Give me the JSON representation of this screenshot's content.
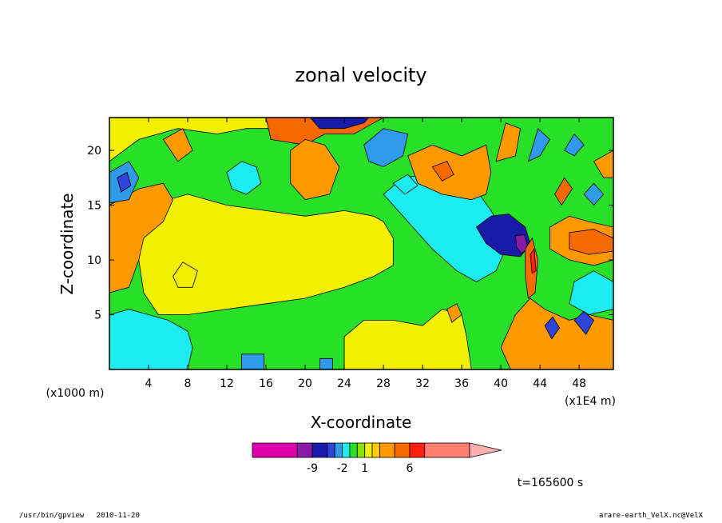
{
  "app": {
    "program": "/usr/bin/gpview",
    "date": "2010-11-20",
    "source": "arare-earth_VelX.nc@VelX",
    "time_label": "t=165600 s"
  },
  "colors": {
    "magenta": "#dd00aa",
    "purple": "#8a1aa8",
    "navy": "#1a1aa8",
    "blue": "#2f44d8",
    "sky": "#2f9be8",
    "cyan": "#1cecf0",
    "green": "#28e028",
    "lime": "#8ee000",
    "yellow": "#f0f000",
    "gold": "#ffcc00",
    "orange": "#ff9900",
    "darkorange": "#f56a00",
    "red": "#ff2010",
    "salmon": "#ff8070",
    "pink": "#ffb0b0"
  },
  "chart_data": {
    "type": "heatmap",
    "title": "zonal velocity",
    "xlabel": "X-coordinate",
    "ylabel": "Z-coordinate",
    "x_unit_label": "(x1000 m)",
    "x_scale_label": "(x1E4 m)",
    "xlim": [
      0,
      51.5
    ],
    "ylim": [
      0,
      23
    ],
    "x_ticks": [
      4,
      8,
      12,
      16,
      20,
      24,
      28,
      32,
      36,
      40,
      44,
      48
    ],
    "y_ticks": [
      5,
      10,
      15,
      20
    ],
    "colorbar": {
      "tick_labels": [
        "-9",
        "-2",
        "1",
        "6"
      ],
      "segments": [
        {
          "color": "magenta",
          "weight": 3
        },
        {
          "color": "purple",
          "weight": 1
        },
        {
          "color": "navy",
          "weight": 1
        },
        {
          "color": "blue",
          "weight": 0.5
        },
        {
          "color": "sky",
          "weight": 0.5
        },
        {
          "color": "cyan",
          "weight": 0.5
        },
        {
          "color": "green",
          "weight": 0.5
        },
        {
          "color": "lime",
          "weight": 0.5
        },
        {
          "color": "yellow",
          "weight": 0.5
        },
        {
          "color": "gold",
          "weight": 0.5
        },
        {
          "color": "orange",
          "weight": 1
        },
        {
          "color": "darkorange",
          "weight": 1
        },
        {
          "color": "red",
          "weight": 1
        },
        {
          "color": "salmon",
          "weight": 3
        }
      ],
      "extend": "pink"
    },
    "regions": [
      {
        "color": "green",
        "pts": [
          [
            0,
            0
          ],
          [
            51.5,
            0
          ],
          [
            51.5,
            23
          ],
          [
            0,
            23
          ]
        ]
      },
      {
        "color": "yellow",
        "pts": [
          [
            4,
            15
          ],
          [
            8,
            16
          ],
          [
            12,
            15
          ],
          [
            16,
            14.5
          ],
          [
            20,
            14
          ],
          [
            24,
            14.5
          ],
          [
            27,
            14
          ],
          [
            28,
            13.5
          ],
          [
            29,
            12
          ],
          [
            29,
            9.5
          ],
          [
            27,
            8.5
          ],
          [
            24,
            7.5
          ],
          [
            20,
            6.5
          ],
          [
            16,
            6
          ],
          [
            12,
            5.5
          ],
          [
            8,
            5
          ],
          [
            5,
            5
          ],
          [
            3.5,
            7
          ],
          [
            3,
            10
          ],
          [
            3,
            13
          ]
        ]
      },
      {
        "color": "orange",
        "pts": [
          [
            0,
            15
          ],
          [
            3,
            16.5
          ],
          [
            5.5,
            17
          ],
          [
            6.5,
            15.5
          ],
          [
            5.5,
            13.5
          ],
          [
            3.5,
            12
          ],
          [
            3,
            10
          ],
          [
            2,
            7.5
          ],
          [
            0,
            7
          ]
        ]
      },
      {
        "color": "yellow",
        "pts": [
          [
            0,
            19
          ],
          [
            3,
            21
          ],
          [
            7,
            22
          ],
          [
            11,
            21.5
          ],
          [
            14,
            22
          ],
          [
            18,
            22
          ],
          [
            21,
            22.5
          ],
          [
            23,
            23
          ],
          [
            0,
            23
          ]
        ]
      },
      {
        "color": "cyan",
        "pts": [
          [
            0,
            5
          ],
          [
            2,
            5.5
          ],
          [
            4,
            5
          ],
          [
            6,
            4.5
          ],
          [
            8,
            3.5
          ],
          [
            8.5,
            2
          ],
          [
            8,
            0
          ],
          [
            0,
            0
          ]
        ]
      },
      {
        "color": "yellow",
        "pts": [
          [
            24,
            0
          ],
          [
            24,
            3
          ],
          [
            26,
            4.5
          ],
          [
            29,
            4.5
          ],
          [
            32,
            4
          ],
          [
            34,
            5.5
          ],
          [
            36,
            5
          ],
          [
            36.5,
            3
          ],
          [
            37,
            0
          ]
        ]
      },
      {
        "color": "cyan",
        "pts": [
          [
            28,
            16
          ],
          [
            30,
            17.5
          ],
          [
            34,
            18
          ],
          [
            37,
            17
          ],
          [
            39,
            14.5
          ],
          [
            40,
            13
          ],
          [
            40.5,
            11
          ],
          [
            39.5,
            9
          ],
          [
            37.5,
            8
          ],
          [
            35.5,
            9
          ],
          [
            33,
            11
          ],
          [
            31,
            13
          ]
        ]
      },
      {
        "color": "navy",
        "pts": [
          [
            37.5,
            13
          ],
          [
            39,
            14
          ],
          [
            40.8,
            14.2
          ],
          [
            42.5,
            13
          ],
          [
            43,
            11.5
          ],
          [
            42,
            10.3
          ],
          [
            40,
            10.5
          ],
          [
            38.5,
            11.5
          ]
        ]
      },
      {
        "color": "purple",
        "pts": [
          [
            41.5,
            12.2
          ],
          [
            42.4,
            12.3
          ],
          [
            42.8,
            11
          ],
          [
            42.1,
            10.6
          ],
          [
            41.6,
            11.2
          ]
        ]
      },
      {
        "color": "orange",
        "pts": [
          [
            30.5,
            19.5
          ],
          [
            33,
            20.5
          ],
          [
            36,
            19.5
          ],
          [
            38.5,
            20.5
          ],
          [
            39,
            18
          ],
          [
            38.5,
            16
          ],
          [
            37,
            15.5
          ],
          [
            34,
            16
          ],
          [
            31.5,
            17
          ]
        ]
      },
      {
        "color": "darkorange",
        "pts": [
          [
            33,
            18.5
          ],
          [
            34.5,
            19
          ],
          [
            35.2,
            17.8
          ],
          [
            34,
            17.2
          ]
        ]
      },
      {
        "color": "orange",
        "pts": [
          [
            45,
            13
          ],
          [
            47,
            14
          ],
          [
            49,
            13.5
          ],
          [
            51.5,
            13
          ],
          [
            51.5,
            10
          ],
          [
            49.5,
            9.5
          ],
          [
            47,
            10
          ],
          [
            45,
            11
          ]
        ]
      },
      {
        "color": "darkorange",
        "pts": [
          [
            47,
            12.5
          ],
          [
            49.5,
            12.8
          ],
          [
            51.5,
            12
          ],
          [
            51.5,
            10.8
          ],
          [
            49,
            10.5
          ],
          [
            47,
            11
          ]
        ]
      },
      {
        "color": "orange",
        "pts": [
          [
            41.5,
            5
          ],
          [
            43,
            6.5
          ],
          [
            44.5,
            5.5
          ],
          [
            47,
            4.5
          ],
          [
            49,
            5
          ],
          [
            51.5,
            4.5
          ],
          [
            51.5,
            0
          ],
          [
            41,
            0
          ],
          [
            40,
            2
          ]
        ]
      },
      {
        "color": "cyan",
        "pts": [
          [
            47.5,
            8
          ],
          [
            49.5,
            9
          ],
          [
            51.5,
            8
          ],
          [
            51.5,
            5.5
          ],
          [
            49,
            5
          ],
          [
            47,
            6
          ]
        ]
      },
      {
        "color": "blue",
        "pts": [
          [
            47.5,
            4.5
          ],
          [
            48.5,
            5.3
          ],
          [
            49.5,
            4.5
          ],
          [
            48.7,
            3.2
          ]
        ]
      },
      {
        "color": "blue",
        "pts": [
          [
            44.5,
            4
          ],
          [
            45.3,
            4.8
          ],
          [
            46,
            3.8
          ],
          [
            45.2,
            2.8
          ]
        ]
      },
      {
        "color": "darkorange",
        "pts": [
          [
            16,
            23
          ],
          [
            16.5,
            21
          ],
          [
            20,
            20.5
          ],
          [
            22,
            21.5
          ],
          [
            25,
            21.5
          ],
          [
            27,
            22.5
          ],
          [
            28,
            23
          ]
        ]
      },
      {
        "color": "orange",
        "pts": [
          [
            18.5,
            20
          ],
          [
            20,
            21
          ],
          [
            22,
            20.5
          ],
          [
            23.5,
            18.5
          ],
          [
            22.5,
            16
          ],
          [
            20,
            15.5
          ],
          [
            18.5,
            17
          ]
        ]
      },
      {
        "color": "cyan",
        "pts": [
          [
            12,
            18
          ],
          [
            13.5,
            19
          ],
          [
            15,
            18.5
          ],
          [
            15.5,
            17
          ],
          [
            14,
            16
          ],
          [
            12.5,
            16.5
          ]
        ]
      },
      {
        "color": "sky",
        "pts": [
          [
            0,
            18
          ],
          [
            2,
            19
          ],
          [
            3,
            17.5
          ],
          [
            2,
            15.5
          ],
          [
            0,
            15.2
          ]
        ]
      },
      {
        "color": "blue",
        "pts": [
          [
            0.8,
            17.5
          ],
          [
            1.8,
            18
          ],
          [
            2.2,
            16.8
          ],
          [
            1.2,
            16.2
          ]
        ]
      },
      {
        "color": "sky",
        "pts": [
          [
            26,
            20.5
          ],
          [
            28,
            22
          ],
          [
            30.5,
            21.5
          ],
          [
            30,
            19.5
          ],
          [
            28,
            18.5
          ],
          [
            26.5,
            19
          ]
        ]
      },
      {
        "color": "navy",
        "pts": [
          [
            20.5,
            23
          ],
          [
            21.5,
            22
          ],
          [
            24,
            22
          ],
          [
            26,
            22.5
          ],
          [
            26.5,
            23
          ]
        ]
      },
      {
        "color": "orange",
        "pts": [
          [
            5.5,
            21
          ],
          [
            7.5,
            22
          ],
          [
            8.5,
            20
          ],
          [
            7,
            19
          ]
        ]
      },
      {
        "color": "yellow",
        "pts": [
          [
            6.5,
            8.5
          ],
          [
            7.5,
            9.8
          ],
          [
            9,
            9
          ],
          [
            8.5,
            7.5
          ],
          [
            7,
            7.5
          ]
        ]
      },
      {
        "color": "orange",
        "pts": [
          [
            34.5,
            5.5
          ],
          [
            35.5,
            6
          ],
          [
            36,
            5
          ],
          [
            35,
            4.3
          ]
        ]
      },
      {
        "color": "darkorange",
        "pts": [
          [
            42.5,
            11
          ],
          [
            43.2,
            12
          ],
          [
            43.8,
            10
          ],
          [
            43.5,
            7
          ],
          [
            42.8,
            6.5
          ],
          [
            42.5,
            8.5
          ]
        ]
      },
      {
        "color": "red",
        "pts": [
          [
            43,
            10.5
          ],
          [
            43.4,
            11
          ],
          [
            43.6,
            9
          ],
          [
            43.2,
            8.8
          ]
        ]
      },
      {
        "color": "orange",
        "pts": [
          [
            39.5,
            19
          ],
          [
            40.5,
            22.5
          ],
          [
            42,
            22
          ],
          [
            41.5,
            19.5
          ]
        ]
      },
      {
        "color": "sky",
        "pts": [
          [
            42.8,
            19
          ],
          [
            43.8,
            22
          ],
          [
            45,
            21
          ],
          [
            44,
            19.5
          ]
        ]
      },
      {
        "color": "darkorange",
        "pts": [
          [
            45.5,
            16
          ],
          [
            46.5,
            17.5
          ],
          [
            47.3,
            16.5
          ],
          [
            46.2,
            15
          ]
        ]
      },
      {
        "color": "sky",
        "pts": [
          [
            46.5,
            20
          ],
          [
            47.5,
            21.5
          ],
          [
            48.5,
            20.5
          ],
          [
            47.5,
            19.5
          ]
        ]
      },
      {
        "color": "sky",
        "pts": [
          [
            48.5,
            16
          ],
          [
            49.5,
            17
          ],
          [
            50.5,
            16
          ],
          [
            49.5,
            15
          ]
        ]
      },
      {
        "color": "orange",
        "pts": [
          [
            49.5,
            19
          ],
          [
            51.5,
            20
          ],
          [
            51.5,
            17.5
          ],
          [
            50.5,
            17.5
          ]
        ]
      },
      {
        "color": "sky",
        "pts": [
          [
            21.5,
            0
          ],
          [
            21.5,
            1
          ],
          [
            22.8,
            1
          ],
          [
            22.8,
            0
          ]
        ]
      },
      {
        "color": "sky",
        "pts": [
          [
            13.5,
            0
          ],
          [
            13.5,
            1.4
          ],
          [
            15.8,
            1.4
          ],
          [
            15.8,
            0
          ]
        ]
      },
      {
        "color": "cyan",
        "pts": [
          [
            29,
            17
          ],
          [
            30.5,
            17.8
          ],
          [
            31.5,
            16.8
          ],
          [
            30.2,
            16
          ]
        ]
      }
    ]
  }
}
